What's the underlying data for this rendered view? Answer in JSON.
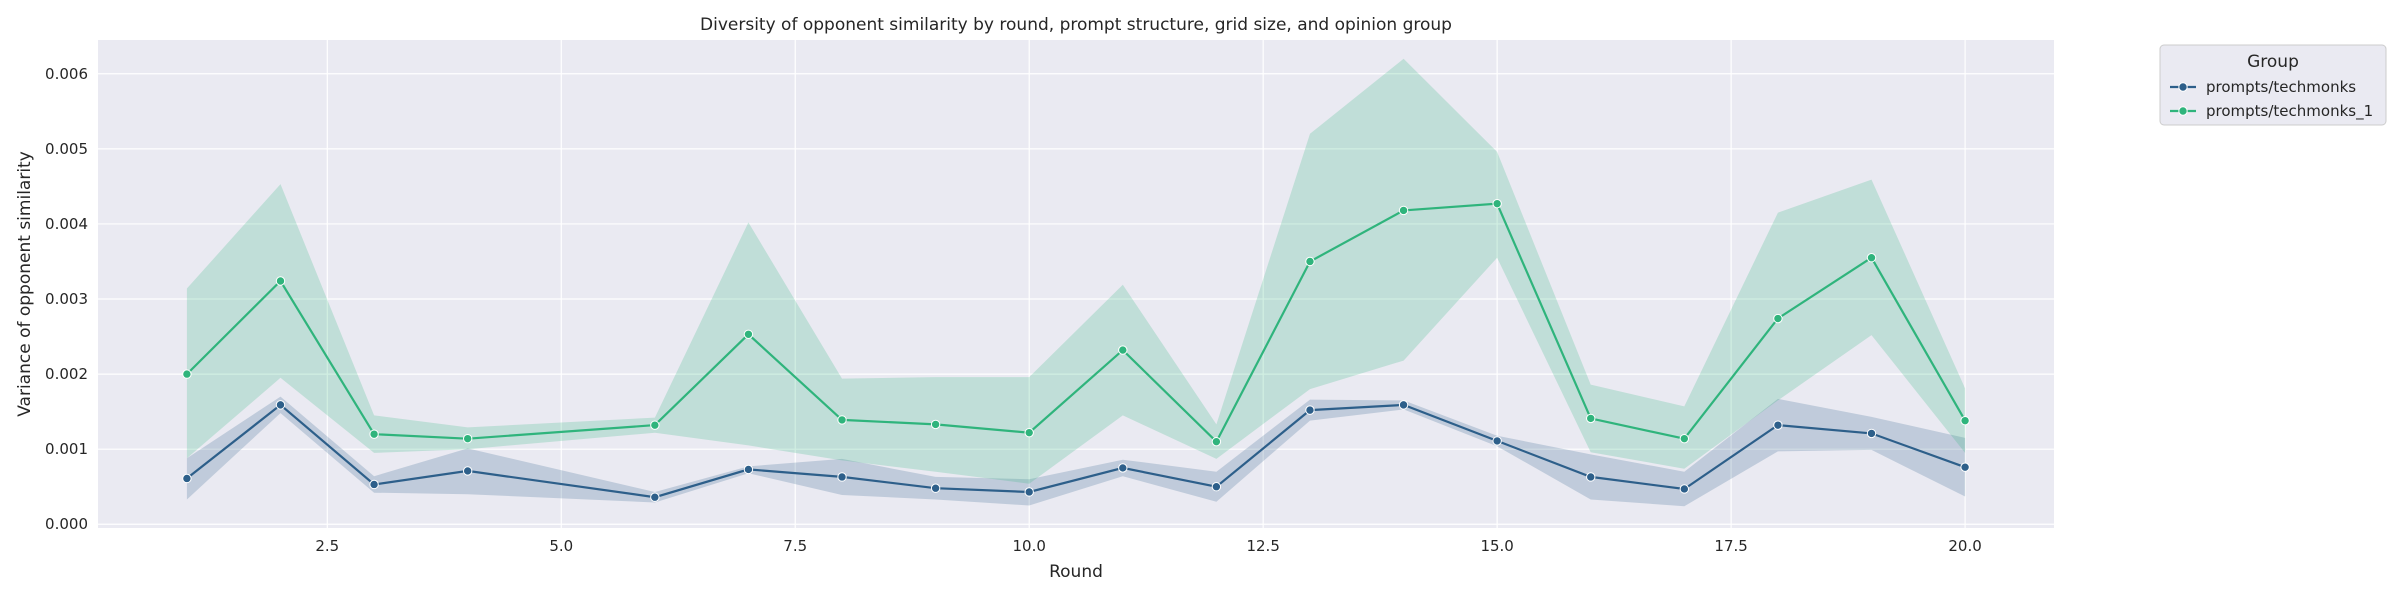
{
  "chart_data": {
    "type": "line",
    "title": "Diversity of opponent similarity by round, prompt structure, grid size, and opinion group",
    "xlabel": "Round",
    "ylabel": "Variance of opponent similarity",
    "xlim": [
      0.05,
      20.95
    ],
    "ylim": [
      -5e-05,
      0.00645
    ],
    "xticks": [
      2.5,
      5.0,
      7.5,
      10.0,
      12.5,
      15.0,
      17.5,
      20.0
    ],
    "xtick_labels": [
      "2.5",
      "5.0",
      "7.5",
      "10.0",
      "12.5",
      "15.0",
      "17.5",
      "20.0"
    ],
    "yticks": [
      0,
      0.001,
      0.002,
      0.003,
      0.004,
      0.005,
      0.006
    ],
    "ytick_labels": [
      "0.000",
      "0.001",
      "0.002",
      "0.003",
      "0.004",
      "0.005",
      "0.006"
    ],
    "grid": true,
    "legend": {
      "title": "Group",
      "placement": "outside-top-right"
    },
    "x": [
      1,
      2,
      3,
      4,
      6,
      7,
      8,
      9,
      10,
      11,
      12,
      13,
      14,
      15,
      16,
      17,
      18,
      19,
      20
    ],
    "series": [
      {
        "name": "prompts/techmonks",
        "color": "#2d5f8a",
        "values": [
          0.00061,
          0.00159,
          0.00053,
          0.00071,
          0.00036,
          0.00073,
          0.00063,
          0.00048,
          0.00043,
          0.00075,
          0.0005,
          0.00152,
          0.00159,
          0.00111,
          0.00063,
          0.00047,
          0.00132,
          0.00121,
          0.00076
        ],
        "ci_low": [
          0.00033,
          0.00148,
          0.00042,
          0.0004,
          0.00029,
          0.00068,
          0.00039,
          0.00033,
          0.00025,
          0.00064,
          0.0003,
          0.00138,
          0.00153,
          0.00104,
          0.00033,
          0.00024,
          0.00097,
          0.00099,
          0.00037
        ],
        "ci_high": [
          0.00088,
          0.0017,
          0.00064,
          0.00101,
          0.00043,
          0.00077,
          0.00087,
          0.00063,
          0.0006,
          0.00086,
          0.0007,
          0.00166,
          0.00165,
          0.00118,
          0.00093,
          0.0007,
          0.00167,
          0.00143,
          0.00115
        ]
      },
      {
        "name": "prompts/techmonks_1",
        "color": "#2fb47c",
        "values": [
          0.002,
          0.00324,
          0.0012,
          0.00114,
          0.00132,
          0.00253,
          0.00139,
          0.00133,
          0.00122,
          0.00232,
          0.0011,
          0.0035,
          0.00418,
          0.00427,
          0.00141,
          0.00114,
          0.00274,
          0.00355,
          0.00138
        ],
        "ci_low": [
          0.00088,
          0.00195,
          0.00095,
          0.001,
          0.00122,
          0.00105,
          0.00085,
          0.0007,
          0.00054,
          0.00145,
          0.00087,
          0.0018,
          0.00218,
          0.00355,
          0.00096,
          0.00074,
          0.00165,
          0.00252,
          0.00095
        ],
        "ci_high": [
          0.00314,
          0.00453,
          0.00145,
          0.00129,
          0.00142,
          0.00402,
          0.00194,
          0.00196,
          0.00196,
          0.00319,
          0.00133,
          0.0052,
          0.0062,
          0.00496,
          0.00186,
          0.00157,
          0.00415,
          0.00459,
          0.00181
        ]
      }
    ]
  }
}
